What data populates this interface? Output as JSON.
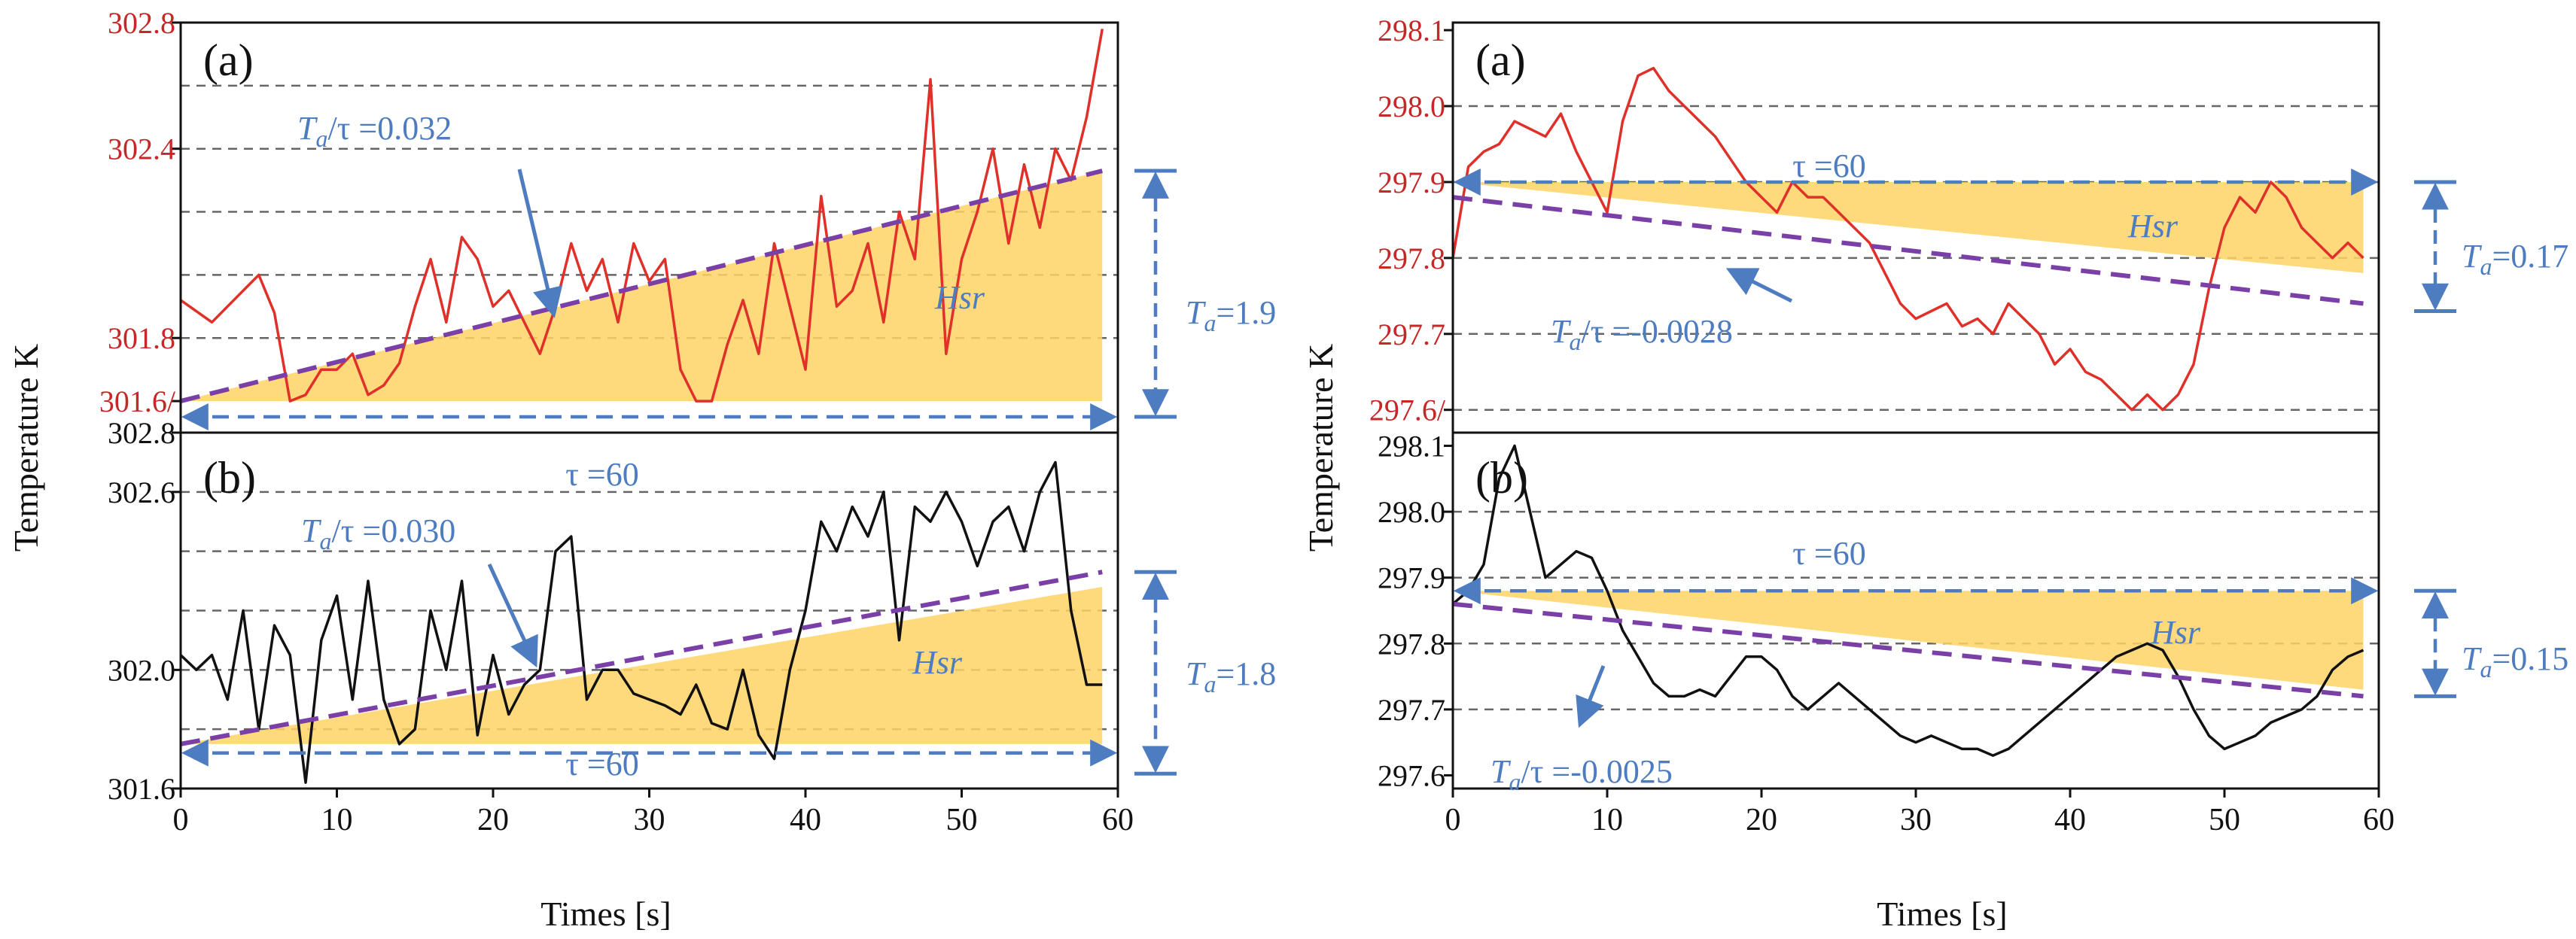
{
  "figure": {
    "shared_ylabel": "Temperature K",
    "shared_xlabel": "Times [s]"
  },
  "chart_data": [
    {
      "id": "left-a",
      "type": "line",
      "panel_label": "(a)",
      "line_color": "#e0302a",
      "tick_color": "#c62828",
      "ylim": [
        301.5,
        302.8
      ],
      "yticks": [
        301.6,
        301.8,
        302.4,
        302.8
      ],
      "ytick_labels": [
        "301.6/",
        "301.8",
        "302.4",
        "302.8"
      ],
      "gridlines": [
        301.8,
        302.0,
        302.2,
        302.4,
        302.6
      ],
      "xlim": [
        0,
        60
      ],
      "series": [
        {
          "name": "temperature",
          "x": [
            0,
            2,
            4,
            5,
            6,
            7,
            8,
            9,
            10,
            11,
            12,
            13,
            14,
            15,
            16,
            17,
            18,
            19,
            20,
            21,
            22,
            23,
            24,
            25,
            26,
            27,
            28,
            29,
            30,
            31,
            32,
            33,
            34,
            35,
            36,
            37,
            38,
            39,
            40,
            41,
            42,
            43,
            44,
            45,
            46,
            47,
            48,
            49,
            50,
            51,
            52,
            53,
            54,
            55,
            56,
            57,
            58,
            59
          ],
          "values": [
            301.92,
            301.85,
            301.95,
            302.0,
            301.88,
            301.6,
            301.62,
            301.7,
            301.7,
            301.75,
            301.62,
            301.65,
            301.72,
            301.9,
            302.05,
            301.85,
            302.12,
            302.05,
            301.9,
            301.95,
            301.85,
            301.75,
            301.9,
            302.1,
            301.95,
            302.05,
            301.85,
            302.1,
            301.98,
            302.05,
            301.7,
            301.6,
            301.6,
            301.78,
            301.92,
            301.75,
            302.1,
            301.9,
            301.7,
            302.25,
            301.9,
            301.95,
            302.1,
            301.85,
            302.2,
            302.05,
            302.62,
            301.75,
            302.05,
            302.2,
            302.4,
            302.1,
            302.35,
            302.15,
            302.4,
            302.3,
            302.5,
            302.78
          ]
        }
      ],
      "trend": {
        "start": [
          0,
          301.6
        ],
        "end": [
          59,
          302.33
        ]
      },
      "shade": {
        "top": [
          [
            0,
            301.6
          ],
          [
            59,
            302.33
          ]
        ],
        "bottom_y": 301.6
      },
      "tau_line_y": 301.55,
      "ta_span": [
        301.55,
        302.33
      ],
      "annotations": {
        "slope": "T_a/τ =0.032",
        "tau": "τ =60",
        "ta": "T_a=1.9",
        "hsr": "Hsr"
      }
    },
    {
      "id": "left-b",
      "type": "line",
      "panel_label": "(b)",
      "line_color": "#111111",
      "tick_color": "#111111",
      "ylim": [
        301.6,
        302.8
      ],
      "yticks": [
        301.6,
        302.0,
        302.6,
        302.8
      ],
      "ytick_labels": [
        "301.6",
        "302.0",
        "302.6",
        "302.8"
      ],
      "gridlines": [
        301.8,
        302.0,
        302.2,
        302.4,
        302.6
      ],
      "xticks": [
        0,
        10,
        20,
        30,
        40,
        50,
        60
      ],
      "xlim": [
        0,
        60
      ],
      "series": [
        {
          "name": "temperature",
          "x": [
            0,
            1,
            2,
            3,
            4,
            5,
            6,
            7,
            8,
            9,
            10,
            11,
            12,
            13,
            14,
            15,
            16,
            17,
            18,
            19,
            20,
            21,
            22,
            23,
            24,
            25,
            26,
            27,
            28,
            29,
            30,
            31,
            32,
            33,
            34,
            35,
            36,
            37,
            38,
            39,
            40,
            41,
            42,
            43,
            44,
            45,
            46,
            47,
            48,
            49,
            50,
            51,
            52,
            53,
            54,
            55,
            56,
            57,
            58,
            59
          ],
          "values": [
            302.05,
            302.0,
            302.05,
            301.9,
            302.2,
            301.8,
            302.15,
            302.05,
            301.62,
            302.1,
            302.25,
            301.9,
            302.3,
            301.9,
            301.75,
            301.8,
            302.2,
            302.0,
            302.3,
            301.78,
            302.05,
            301.85,
            301.95,
            302.0,
            302.4,
            302.45,
            301.9,
            302.0,
            302.0,
            301.92,
            301.9,
            301.88,
            301.85,
            301.95,
            301.82,
            301.8,
            302.0,
            301.78,
            301.7,
            302.0,
            302.2,
            302.5,
            302.4,
            302.55,
            302.45,
            302.6,
            302.1,
            302.55,
            302.5,
            302.6,
            302.5,
            302.35,
            302.5,
            302.55,
            302.4,
            302.6,
            302.7,
            302.2,
            301.95,
            301.95
          ]
        }
      ],
      "trend": {
        "start": [
          0,
          301.75
        ],
        "end": [
          59,
          302.33
        ]
      },
      "shade": {
        "top": [
          [
            0,
            301.75
          ],
          [
            59,
            302.28
          ]
        ],
        "bottom_y": 301.75
      },
      "tau_line_y": 301.72,
      "ta_span": [
        301.65,
        302.33
      ],
      "annotations": {
        "slope": "T_a/τ =0.030",
        "tau": "τ =60",
        "ta": "T_a=1.8",
        "hsr": "Hsr"
      }
    },
    {
      "id": "right-a",
      "type": "line",
      "panel_label": "(a)",
      "line_color": "#e0302a",
      "tick_color": "#c62828",
      "ylim": [
        297.57,
        298.11
      ],
      "yticks": [
        297.6,
        297.7,
        297.8,
        297.9,
        298.0,
        298.1
      ],
      "ytick_labels": [
        "297.6/",
        "297.7",
        "297.8",
        "297.9",
        "298.0",
        "298.1"
      ],
      "gridlines": [
        297.6,
        297.7,
        297.8,
        297.9,
        298.0
      ],
      "xlim": [
        0,
        60
      ],
      "series": [
        {
          "name": "temperature",
          "x": [
            0,
            1,
            2,
            3,
            4,
            5,
            6,
            7,
            8,
            9,
            10,
            11,
            12,
            13,
            14,
            15,
            16,
            17,
            18,
            19,
            20,
            21,
            22,
            23,
            24,
            25,
            26,
            27,
            28,
            29,
            30,
            31,
            32,
            33,
            34,
            35,
            36,
            37,
            38,
            39,
            40,
            41,
            42,
            43,
            44,
            45,
            46,
            47,
            48,
            49,
            50,
            51,
            52,
            53,
            54,
            55,
            56,
            57,
            58,
            59
          ],
          "values": [
            297.8,
            297.92,
            297.94,
            297.95,
            297.98,
            297.97,
            297.96,
            297.99,
            297.94,
            297.9,
            297.86,
            297.98,
            298.04,
            298.05,
            298.02,
            298.0,
            297.98,
            297.96,
            297.93,
            297.9,
            297.88,
            297.86,
            297.9,
            297.88,
            297.88,
            297.86,
            297.84,
            297.82,
            297.78,
            297.74,
            297.72,
            297.73,
            297.74,
            297.71,
            297.72,
            297.7,
            297.74,
            297.72,
            297.7,
            297.66,
            297.68,
            297.65,
            297.64,
            297.62,
            297.6,
            297.62,
            297.6,
            297.62,
            297.66,
            297.76,
            297.84,
            297.88,
            297.86,
            297.9,
            297.88,
            297.84,
            297.82,
            297.8,
            297.82,
            297.8
          ]
        }
      ],
      "trend": {
        "start": [
          0,
          297.88
        ],
        "end": [
          59,
          297.74
        ]
      },
      "shade": {
        "top_y": 297.9,
        "bottom": [
          [
            0,
            297.9
          ],
          [
            59,
            297.78
          ]
        ]
      },
      "tau_line_y": 297.9,
      "ta_span": [
        297.73,
        297.9
      ],
      "annotations": {
        "slope": "T_a/τ =-0.0028",
        "tau": "τ =60",
        "ta": "T_a=0.17",
        "hsr": "Hsr"
      }
    },
    {
      "id": "right-b",
      "type": "line",
      "panel_label": "(b)",
      "line_color": "#111111",
      "tick_color": "#111111",
      "ylim": [
        297.58,
        298.12
      ],
      "yticks": [
        297.6,
        297.7,
        297.8,
        297.9,
        298.0,
        298.1
      ],
      "ytick_labels": [
        "297.6",
        "297.7",
        "297.8",
        "297.9",
        "298.0",
        "298.1"
      ],
      "gridlines": [
        297.7,
        297.8,
        297.9,
        298.0
      ],
      "xticks": [
        0,
        10,
        20,
        30,
        40,
        50,
        60
      ],
      "xlim": [
        0,
        60
      ],
      "series": [
        {
          "name": "temperature",
          "x": [
            0,
            1,
            2,
            3,
            4,
            5,
            6,
            7,
            8,
            9,
            10,
            11,
            12,
            13,
            14,
            15,
            16,
            17,
            18,
            19,
            20,
            21,
            22,
            23,
            24,
            25,
            26,
            27,
            28,
            29,
            30,
            31,
            32,
            33,
            34,
            35,
            36,
            37,
            38,
            39,
            40,
            41,
            42,
            43,
            44,
            45,
            46,
            47,
            48,
            49,
            50,
            51,
            52,
            53,
            54,
            55,
            56,
            57,
            58,
            59
          ],
          "values": [
            297.86,
            297.88,
            297.92,
            298.05,
            298.1,
            298.0,
            297.9,
            297.92,
            297.94,
            297.93,
            297.88,
            297.82,
            297.78,
            297.74,
            297.72,
            297.72,
            297.73,
            297.72,
            297.75,
            297.78,
            297.78,
            297.76,
            297.72,
            297.7,
            297.72,
            297.74,
            297.72,
            297.7,
            297.68,
            297.66,
            297.65,
            297.66,
            297.65,
            297.64,
            297.64,
            297.63,
            297.64,
            297.66,
            297.68,
            297.7,
            297.72,
            297.74,
            297.76,
            297.78,
            297.79,
            297.8,
            297.79,
            297.75,
            297.7,
            297.66,
            297.64,
            297.65,
            297.66,
            297.68,
            297.69,
            297.7,
            297.72,
            297.76,
            297.78,
            297.79
          ]
        }
      ],
      "trend": {
        "start": [
          0,
          297.86
        ],
        "end": [
          59,
          297.72
        ]
      },
      "shade": {
        "top_y": 297.88,
        "bottom": [
          [
            0,
            297.88
          ],
          [
            59,
            297.73
          ]
        ]
      },
      "tau_line_y": 297.88,
      "ta_span": [
        297.72,
        297.88
      ],
      "annotations": {
        "slope": "T_a/τ =-0.0025",
        "tau": "τ =60",
        "ta": "T_a=0.15",
        "hsr": "Hsr"
      }
    }
  ]
}
